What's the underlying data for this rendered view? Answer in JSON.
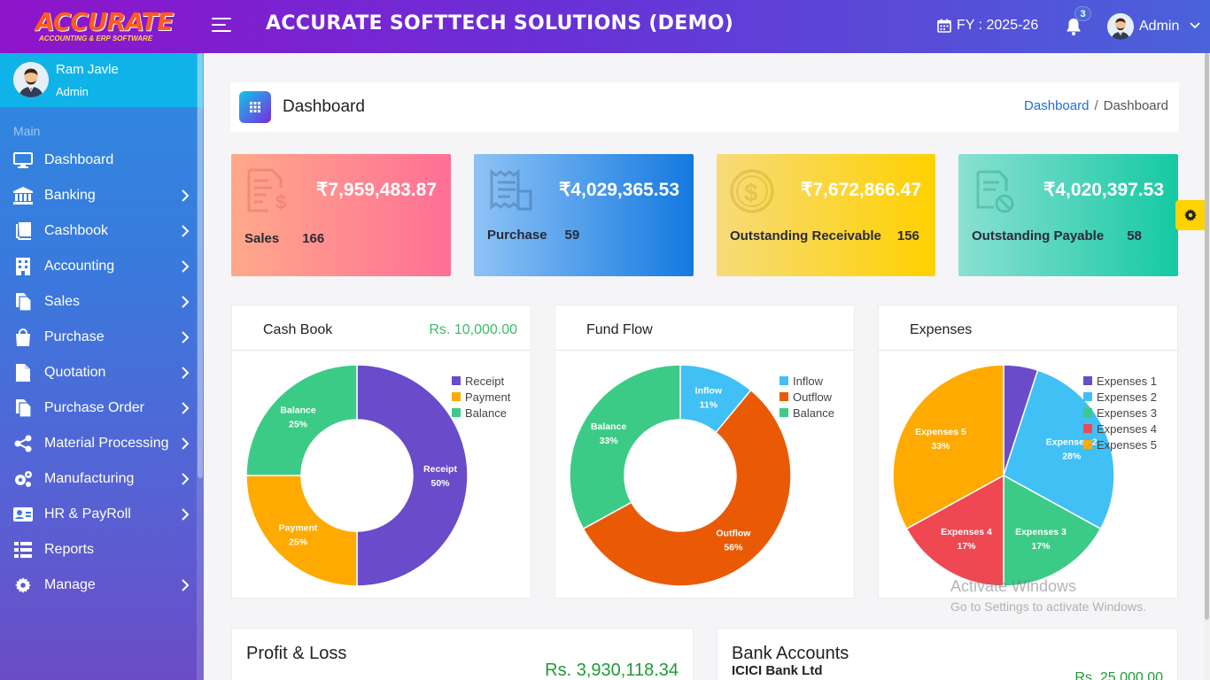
{
  "topbar": {
    "logo_text": "ACCURATE",
    "logo_tagline": "ACCOUNTING & ERP SOFTWARE",
    "app_title": "ACCURATE SOFTTECH SOLUTIONS (DEMO)",
    "fy_label": "FY : 2025-26",
    "notification_count": "3",
    "user_label": "Admin"
  },
  "sidebar": {
    "user_name": "Ram Javle",
    "user_role": "Admin",
    "section_label": "Main",
    "items": [
      {
        "label": "Dashboard",
        "icon": "monitor-icon",
        "has_submenu": false
      },
      {
        "label": "Banking",
        "icon": "bank-icon",
        "has_submenu": true
      },
      {
        "label": "Cashbook",
        "icon": "book-icon",
        "has_submenu": true
      },
      {
        "label": "Accounting",
        "icon": "building-icon",
        "has_submenu": true
      },
      {
        "label": "Sales",
        "icon": "documents-icon",
        "has_submenu": true
      },
      {
        "label": "Purchase",
        "icon": "shopping-bag-icon",
        "has_submenu": true
      },
      {
        "label": "Quotation",
        "icon": "file-icon",
        "has_submenu": true
      },
      {
        "label": "Purchase Order",
        "icon": "documents-icon",
        "has_submenu": true
      },
      {
        "label": "Material Processing",
        "icon": "share-icon",
        "has_submenu": true
      },
      {
        "label": "Manufacturing",
        "icon": "gears-icon",
        "has_submenu": true
      },
      {
        "label": "HR & PayRoll",
        "icon": "id-card-icon",
        "has_submenu": true
      },
      {
        "label": "Reports",
        "icon": "list-icon",
        "has_submenu": false
      },
      {
        "label": "Manage",
        "icon": "gear-icon",
        "has_submenu": true
      }
    ]
  },
  "header": {
    "title": "Dashboard",
    "breadcrumb_link": "Dashboard",
    "breadcrumb_separator": "/",
    "breadcrumb_current": "Dashboard"
  },
  "cards": {
    "sales": {
      "value": "₹7,959,483.87",
      "label": "Sales",
      "count": "166"
    },
    "purchase": {
      "value": "₹4,029,365.53",
      "label": "Purchase",
      "count": "59"
    },
    "receivable": {
      "value": "₹7,672,866.47",
      "label": "Outstanding Receivable",
      "count": "156"
    },
    "payable": {
      "value": "₹4,020,397.53",
      "label": "Outstanding Payable",
      "count": "58"
    }
  },
  "panels": {
    "cashbook": {
      "title": "Cash Book",
      "amount": "Rs. 10,000.00"
    },
    "fundflow": {
      "title": "Fund Flow"
    },
    "expenses": {
      "title": "Expenses"
    },
    "profit_loss": {
      "title": "Profit & Loss",
      "amount": "Rs. 3,930,118.34"
    },
    "bank_accounts": {
      "title": "Bank Accounts",
      "bank_name": "ICICI Bank Ltd",
      "amount": "Rs. 25,000.00"
    }
  },
  "watermark": {
    "line1": "Activate Windows",
    "line2": "Go to Settings to activate Windows."
  },
  "colors": {
    "topbar_start": "#8e14c9",
    "topbar_end": "#4a62da",
    "accent_green": "#3cbd68",
    "settings_yellow": "#ffd200"
  },
  "chart_data": [
    {
      "type": "pie",
      "title": "Cash Book",
      "donut": true,
      "categories": [
        "Receipt",
        "Payment",
        "Balance"
      ],
      "values": [
        50,
        25,
        25
      ],
      "labels": [
        "Receipt\n50%",
        "Payment\n25%",
        "Balance\n25%"
      ],
      "colors": [
        "#6a4bc9",
        "#ffaa00",
        "#3ccb86"
      ],
      "legend": "top-right"
    },
    {
      "type": "pie",
      "title": "Fund Flow",
      "donut": true,
      "categories": [
        "Inflow",
        "Outflow",
        "Balance"
      ],
      "values": [
        11,
        56,
        33
      ],
      "labels": [
        "Inflow\n11%",
        "Outflow\n56%",
        "Balance\n33%"
      ],
      "colors": [
        "#40c0f5",
        "#ea5a05",
        "#3ccb86"
      ],
      "legend": "top-right"
    },
    {
      "type": "pie",
      "title": "Expenses",
      "donut": false,
      "categories": [
        "Expenses 1",
        "Expenses 2",
        "Expenses 3",
        "Expenses 4",
        "Expenses 5"
      ],
      "values": [
        5,
        28,
        17,
        17,
        33
      ],
      "labels": [
        "",
        "Expenses 2\n28%",
        "Expenses 3\n17%",
        "Expenses 4\n17%",
        "Expenses 5\n33%"
      ],
      "colors": [
        "#6a4bc9",
        "#40c0f5",
        "#3ccb86",
        "#ef4853",
        "#ffaa00"
      ],
      "legend": "top-right"
    }
  ]
}
